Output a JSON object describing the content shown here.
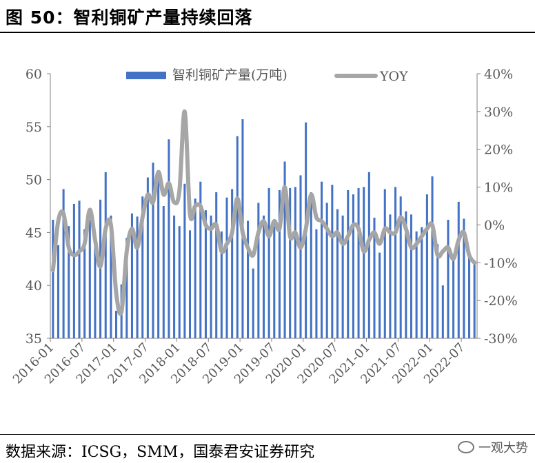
{
  "header": {
    "title": "图 50：智利铜矿产量持续回落"
  },
  "footer": {
    "source": "数据来源：ICSG，SMM，国泰君安证券研究",
    "watermark": "一观大势"
  },
  "colors": {
    "bar": "#4472C4",
    "line": "#A6A6A6",
    "axis": "#7F7F7F"
  },
  "chart_data": {
    "type": "bar+line",
    "legend": {
      "position": "top",
      "entries": [
        "智利铜矿产量(万吨)",
        "YOY"
      ]
    },
    "y_left": {
      "min": 35,
      "max": 60,
      "ticks": [
        "35",
        "40",
        "45",
        "50",
        "55",
        "60"
      ]
    },
    "y_right": {
      "min": -30,
      "max": 40,
      "ticks": [
        "-30%",
        "-20%",
        "-10%",
        "0%",
        "10%",
        "20%",
        "30%",
        "40%"
      ]
    },
    "x_tick_labels": [
      "2016-01",
      "2016-07",
      "2017-01",
      "2017-07",
      "2018-01",
      "2018-07",
      "2019-01",
      "2019-07",
      "2020-01",
      "2020-07",
      "2021-01",
      "2021-07",
      "2022-01",
      "2022-07"
    ],
    "x": [
      "2016-01",
      "2016-02",
      "2016-03",
      "2016-04",
      "2016-05",
      "2016-06",
      "2016-07",
      "2016-08",
      "2016-09",
      "2016-10",
      "2016-11",
      "2016-12",
      "2017-01",
      "2017-02",
      "2017-03",
      "2017-04",
      "2017-05",
      "2017-06",
      "2017-07",
      "2017-08",
      "2017-09",
      "2017-10",
      "2017-11",
      "2017-12",
      "2018-01",
      "2018-02",
      "2018-03",
      "2018-04",
      "2018-05",
      "2018-06",
      "2018-07",
      "2018-08",
      "2018-09",
      "2018-10",
      "2018-11",
      "2018-12",
      "2019-01",
      "2019-02",
      "2019-03",
      "2019-04",
      "2019-05",
      "2019-06",
      "2019-07",
      "2019-08",
      "2019-09",
      "2019-10",
      "2019-11",
      "2019-12",
      "2020-01",
      "2020-02",
      "2020-03",
      "2020-04",
      "2020-05",
      "2020-06",
      "2020-07",
      "2020-08",
      "2020-09",
      "2020-10",
      "2020-11",
      "2020-12",
      "2021-01",
      "2021-02",
      "2021-03",
      "2021-04",
      "2021-05",
      "2021-06",
      "2021-07",
      "2021-08",
      "2021-09",
      "2021-10",
      "2021-11",
      "2021-12",
      "2022-01",
      "2022-02",
      "2022-03",
      "2022-04",
      "2022-05",
      "2022-06",
      "2022-07",
      "2022-08",
      "2022-09"
    ],
    "series": [
      {
        "name": "智利铜矿产量(万吨)",
        "type": "bar",
        "values": [
          46.2,
          43.8,
          49.1,
          45.6,
          47.7,
          48.0,
          45.3,
          46.2,
          44.3,
          48.1,
          50.7,
          46.6,
          37.6,
          40.1,
          44.5,
          46.8,
          46.5,
          48.4,
          50.2,
          51.6,
          50.4,
          47.5,
          53.8,
          46.6,
          45.6,
          49.6,
          45.2,
          48.2,
          49.8,
          47.1,
          46.6,
          48.8,
          45.1,
          48.3,
          49.1,
          54.1,
          55.7,
          46.1,
          41.6,
          47.8,
          46.6,
          49.2,
          46.2,
          49.0,
          51.7,
          49.2,
          49.3,
          50.4,
          55.4,
          48.8,
          45.3,
          49.8,
          47.8,
          49.5,
          47.2,
          46.6,
          49.0,
          48.6,
          49.2,
          49.3,
          50.7,
          46.4,
          43.1,
          49.1,
          46.7,
          49.3,
          48.4,
          47.0,
          46.7,
          45.1,
          45.5,
          48.6,
          50.3,
          43.9,
          40.0,
          46.2,
          42.9,
          47.9,
          46.3,
          43.0,
          42.2
        ]
      },
      {
        "name": "YOY",
        "type": "line",
        "unit": "%",
        "values": [
          -12,
          1,
          3,
          -6,
          -8,
          -7,
          -5,
          4,
          -4,
          -11,
          -1,
          0,
          -18,
          -23,
          -7,
          -1,
          -6,
          2,
          8,
          6,
          14,
          8,
          11,
          6,
          9,
          30,
          3,
          5,
          5,
          0,
          -1,
          0,
          -7,
          -5,
          -2,
          7,
          -2,
          -6,
          -8,
          -2,
          1,
          -3,
          1,
          -1,
          10,
          -3,
          -2,
          -6,
          -1,
          8,
          2,
          1,
          -1,
          -3,
          -2,
          -5,
          -3,
          0,
          -1,
          -7,
          -4,
          -2,
          -5,
          -1,
          -2,
          -2,
          2,
          -1,
          -6,
          -5,
          -3,
          -1,
          0,
          -8,
          -7,
          -6,
          -9,
          -4,
          -2,
          -8,
          -10
        ]
      }
    ]
  }
}
